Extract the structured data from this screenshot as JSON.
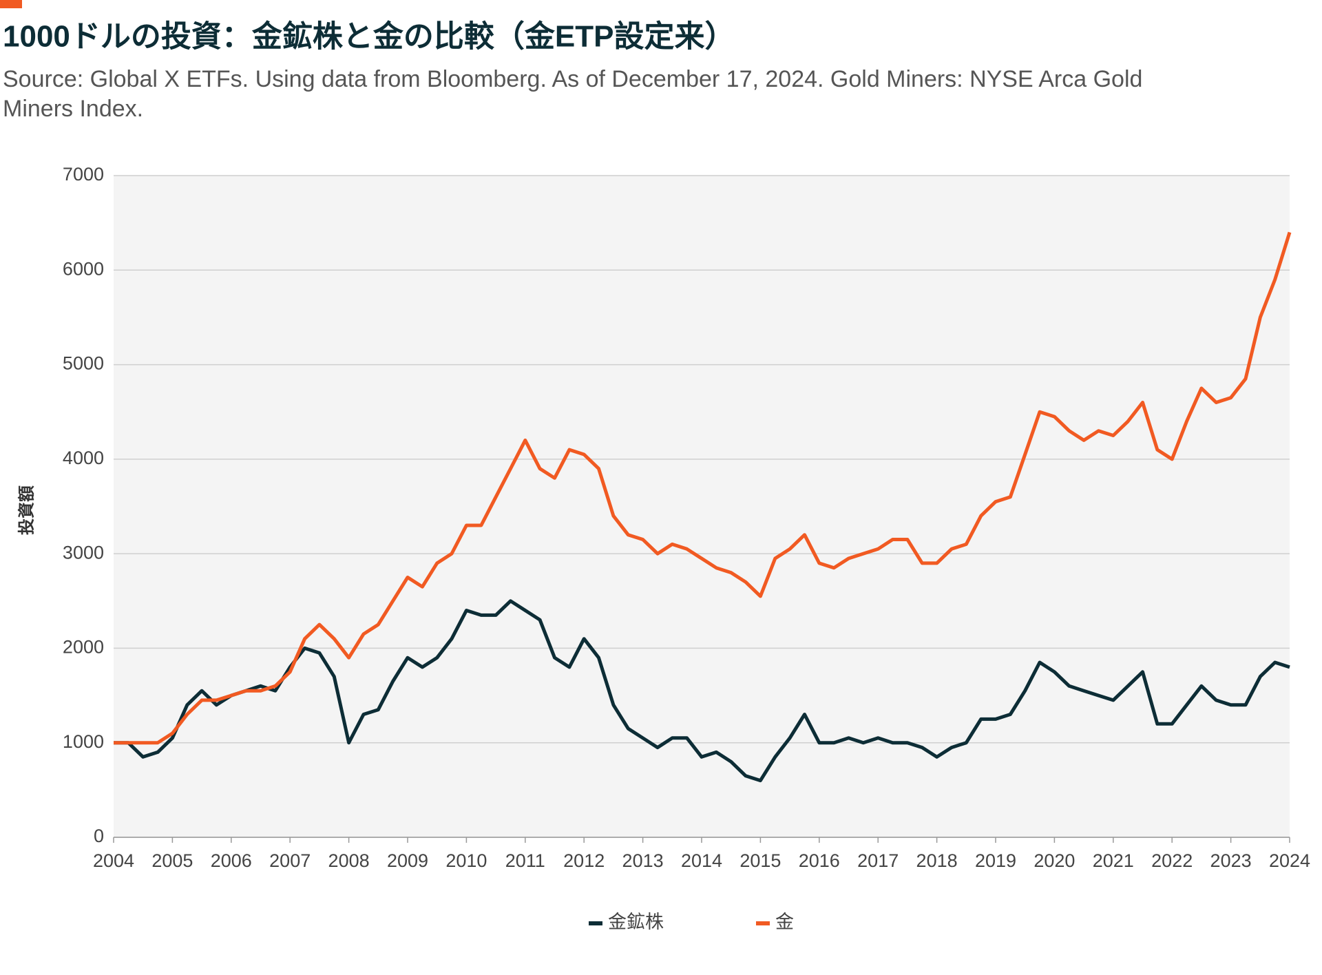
{
  "chart_data": {
    "type": "line",
    "title": "1000ドルの投資：金鉱株と金の比較（金ETP設定来）",
    "subtitle": [
      "Source: Global X ETFs. Using data from Bloomberg. As of December 17, 2024. Gold Miners: NYSE Arca Gold",
      "Miners Index."
    ],
    "y_label": "投資額",
    "x": [
      2004,
      2004.25,
      2004.5,
      2004.75,
      2005,
      2005.25,
      2005.5,
      2005.75,
      2006,
      2006.25,
      2006.5,
      2006.75,
      2007,
      2007.25,
      2007.5,
      2007.75,
      2008,
      2008.25,
      2008.5,
      2008.75,
      2009,
      2009.25,
      2009.5,
      2009.75,
      2010,
      2010.25,
      2010.5,
      2010.75,
      2011,
      2011.25,
      2011.5,
      2011.75,
      2012,
      2012.25,
      2012.5,
      2012.75,
      2013,
      2013.25,
      2013.5,
      2013.75,
      2014,
      2014.25,
      2014.5,
      2014.75,
      2015,
      2015.25,
      2015.5,
      2015.75,
      2016,
      2016.25,
      2016.5,
      2016.75,
      2017,
      2017.25,
      2017.5,
      2017.75,
      2018,
      2018.25,
      2018.5,
      2018.75,
      2019,
      2019.25,
      2019.5,
      2019.75,
      2020,
      2020.25,
      2020.5,
      2020.75,
      2021,
      2021.25,
      2021.5,
      2021.75,
      2022,
      2022.25,
      2022.5,
      2022.75,
      2023,
      2023.25,
      2023.5,
      2023.75,
      2024
    ],
    "series": [
      {
        "name": "金鉱株",
        "color": "#0d2d36",
        "values": [
          1000,
          1000,
          850,
          900,
          1050,
          1400,
          1550,
          1400,
          1500,
          1550,
          1600,
          1550,
          1800,
          2000,
          1950,
          1700,
          1000,
          1300,
          1350,
          1650,
          1900,
          1800,
          1900,
          2100,
          2400,
          2350,
          2350,
          2500,
          2400,
          2300,
          1900,
          1800,
          2100,
          1900,
          1400,
          1150,
          1050,
          950,
          1050,
          1050,
          850,
          900,
          800,
          650,
          600,
          850,
          1050,
          1300,
          1000,
          1000,
          1050,
          1000,
          1050,
          1000,
          1000,
          950,
          850,
          950,
          1000,
          1250,
          1250,
          1300,
          1550,
          1850,
          1750,
          1600,
          1550,
          1500,
          1450,
          1600,
          1750,
          1200,
          1200,
          1400,
          1600,
          1450,
          1400,
          1400,
          1700,
          1850,
          1800
        ]
      },
      {
        "name": "金",
        "color": "#f15a22",
        "values": [
          1000,
          1000,
          1000,
          1000,
          1100,
          1300,
          1450,
          1450,
          1500,
          1550,
          1550,
          1600,
          1750,
          2100,
          2250,
          2100,
          1900,
          2150,
          2250,
          2500,
          2750,
          2650,
          2900,
          3000,
          3300,
          3300,
          3600,
          3900,
          4200,
          3900,
          3800,
          4100,
          4050,
          3900,
          3400,
          3200,
          3150,
          3000,
          3100,
          3050,
          2950,
          2850,
          2800,
          2700,
          2550,
          2950,
          3050,
          3200,
          2900,
          2850,
          2950,
          3000,
          3050,
          3150,
          3150,
          2900,
          2900,
          3050,
          3100,
          3400,
          3550,
          3600,
          4050,
          4500,
          4450,
          4300,
          4200,
          4300,
          4250,
          4400,
          4600,
          4100,
          4000,
          4400,
          4750,
          4600,
          4650,
          4850,
          5500,
          5900,
          6400
        ]
      }
    ],
    "xlim": [
      2004,
      2024
    ],
    "xticks": [
      2004,
      2005,
      2006,
      2007,
      2008,
      2009,
      2010,
      2011,
      2012,
      2013,
      2014,
      2015,
      2016,
      2017,
      2018,
      2019,
      2020,
      2021,
      2022,
      2023,
      2024
    ],
    "ylim": [
      0,
      7000
    ],
    "yticks": [
      0,
      1000,
      2000,
      3000,
      4000,
      5000,
      6000,
      7000
    ],
    "grid": true,
    "legend": "bottom"
  }
}
